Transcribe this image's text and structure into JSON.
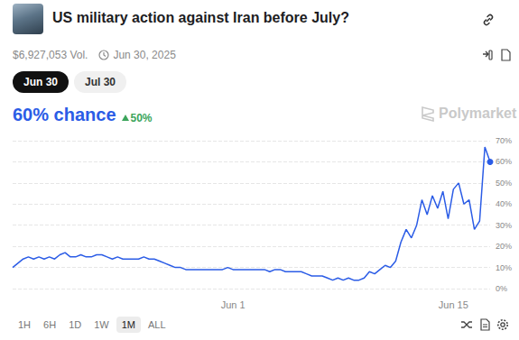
{
  "header": {
    "title": "US military action against Iran before July?",
    "volume": "$6,927,053 Vol.",
    "date": "Jun 30, 2025"
  },
  "tabs": [
    "Jun 30",
    "Jul 30"
  ],
  "headline": {
    "chance": "60% chance",
    "change": "50%"
  },
  "brand": "Polymarket",
  "ranges": [
    "1H",
    "6H",
    "1D",
    "1W",
    "1M",
    "ALL"
  ],
  "active_range": "1M",
  "chart_data": {
    "type": "line",
    "categories": [
      null,
      null,
      null,
      null,
      null,
      null,
      null,
      null,
      null,
      null,
      null,
      null,
      null,
      null,
      null,
      null,
      null,
      null,
      null,
      null,
      null,
      null,
      null,
      null,
      null,
      null,
      null,
      null,
      null,
      null,
      null,
      null,
      null,
      null,
      null,
      null,
      null,
      null,
      null,
      null,
      null,
      null,
      "Jun 1",
      null,
      null,
      null,
      null,
      null,
      null,
      null,
      null,
      null,
      null,
      null,
      null,
      null,
      null,
      null,
      null,
      null,
      null,
      null,
      null,
      null,
      null,
      null,
      null,
      null,
      null,
      null,
      null,
      null,
      null,
      null,
      null,
      null,
      null,
      null,
      null,
      null,
      null,
      null,
      null,
      null,
      "Jun 15",
      null,
      null,
      null,
      null,
      null,
      null,
      null
    ],
    "series": [
      {
        "name": "Jun 30",
        "color": "#2b5ce6",
        "values": [
          10,
          12,
          14,
          15,
          14,
          15,
          14,
          15,
          14,
          16,
          17,
          15,
          15,
          16,
          15,
          15,
          16,
          16,
          15,
          14,
          15,
          14,
          14,
          14,
          14,
          15,
          14,
          14,
          13,
          12,
          11,
          10,
          10,
          9,
          9,
          9,
          9,
          9,
          9,
          9,
          9,
          10,
          9,
          9,
          9,
          9,
          9,
          9,
          9,
          8,
          9,
          9,
          8,
          8,
          8,
          8,
          7,
          6,
          6,
          6,
          5,
          4,
          5,
          4,
          5,
          4,
          4,
          5,
          8,
          7,
          9,
          11,
          10,
          13,
          22,
          28,
          24,
          30,
          42,
          35,
          44,
          38,
          46,
          33,
          47,
          50,
          40,
          42,
          28,
          32,
          67,
          60
        ]
      }
    ],
    "ylim": [
      0,
      70
    ],
    "yticks": [
      {
        "value": 0,
        "label": "0%"
      },
      {
        "value": 10,
        "label": "10%"
      },
      {
        "value": 20,
        "label": "20%"
      },
      {
        "value": 30,
        "label": "30%"
      },
      {
        "value": 40,
        "label": "40%"
      },
      {
        "value": 50,
        "label": "50%"
      },
      {
        "value": 60,
        "label": "60%"
      },
      {
        "value": 70,
        "label": "70%"
      }
    ],
    "grid": true,
    "marker": "last"
  }
}
